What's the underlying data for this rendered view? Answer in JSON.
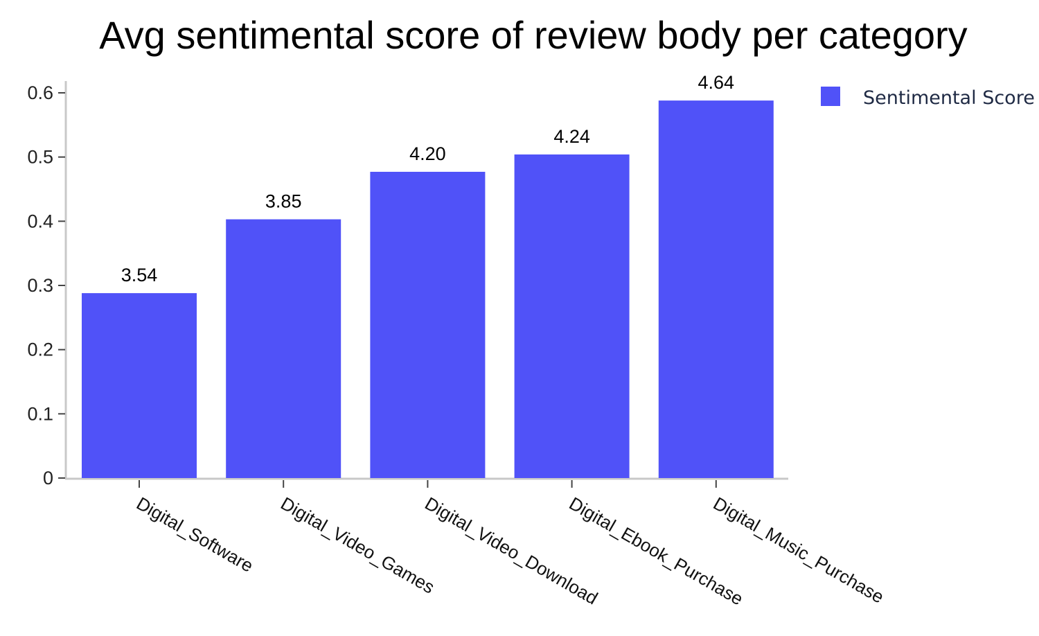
{
  "chart_data": {
    "type": "bar",
    "title": "Avg sentimental score of review body per category",
    "categories": [
      "Digital_Software",
      "Digital_Video_Games",
      "Digital_Video_Download",
      "Digital_Ebook_Purchase",
      "Digital_Music_Purchase"
    ],
    "series": [
      {
        "name": "Sentimental Score",
        "color": "#5052f8",
        "values": [
          0.288,
          0.403,
          0.477,
          0.504,
          0.588
        ],
        "data_labels": [
          "3.54",
          "3.85",
          "4.20",
          "4.24",
          "4.64"
        ]
      }
    ],
    "yticks": [
      0,
      0.1,
      0.2,
      0.3,
      0.4,
      0.5,
      0.6
    ],
    "ytick_labels": [
      "0",
      "0.1",
      "0.2",
      "0.3",
      "0.4",
      "0.5",
      "0.6"
    ],
    "ylim": [
      0,
      0.6
    ],
    "legend": "top-right",
    "grid": false
  }
}
